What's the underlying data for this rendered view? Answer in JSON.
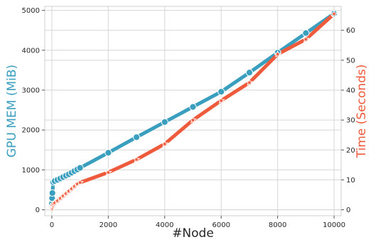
{
  "chart_data": {
    "type": "line",
    "xlabel": "#Node",
    "ylabel_left": "GPU MEM (MiB)",
    "ylabel_right": "Time (Seconds)",
    "xlim": [
      -250,
      10250
    ],
    "ylim_left": [
      -150,
      5100
    ],
    "ylim_right": [
      -2,
      68
    ],
    "x_ticks": [
      0,
      2000,
      4000,
      6000,
      8000,
      10000
    ],
    "y_ticks_left": [
      0,
      1000,
      2000,
      3000,
      4000,
      5000
    ],
    "y_ticks_right": [
      0,
      10,
      20,
      30,
      40,
      50,
      60
    ],
    "grid": true,
    "colors": {
      "left": "#3a9fbe",
      "right": "#ee5a3c"
    },
    "series": [
      {
        "axis": "left",
        "marker": "circle",
        "x": [
          0,
          10,
          20,
          50,
          100,
          200,
          300,
          400,
          500,
          600,
          700,
          800,
          900,
          1000,
          2000,
          3000,
          4000,
          5000,
          6000,
          7000,
          8000,
          9000,
          10000
        ],
        "values": [
          150,
          290,
          420,
          690,
          720,
          750,
          785,
          820,
          855,
          890,
          930,
          970,
          1010,
          1050,
          1430,
          1820,
          2200,
          2580,
          2960,
          3440,
          3940,
          4430,
          4920
        ]
      },
      {
        "axis": "right",
        "marker": "star",
        "x": [
          0,
          10,
          20,
          50,
          100,
          200,
          300,
          400,
          500,
          600,
          700,
          800,
          900,
          1000,
          2000,
          3000,
          4000,
          5000,
          6000,
          7000,
          8000,
          9000,
          10000
        ],
        "values": [
          0.3,
          0.8,
          1.3,
          1.8,
          2.3,
          3.0,
          3.8,
          4.6,
          5.4,
          6.2,
          7.0,
          7.8,
          8.6,
          9.1,
          12.5,
          16.8,
          22.0,
          30.0,
          36.5,
          42.5,
          52.0,
          57.0,
          65.5
        ]
      }
    ]
  }
}
